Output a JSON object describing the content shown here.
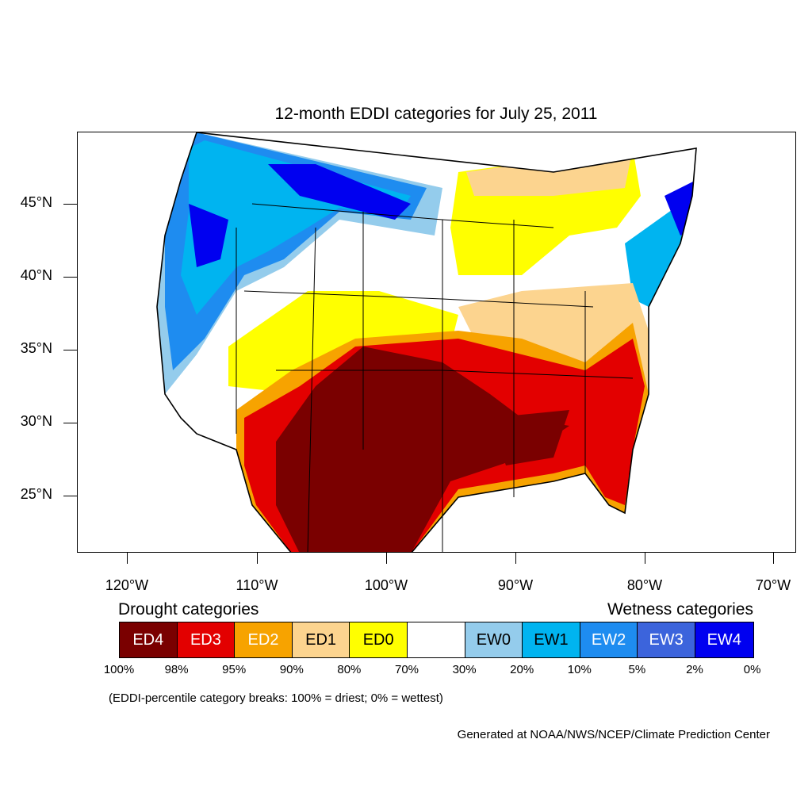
{
  "title": "12-month EDDI categories for July 25, 2011",
  "latitude_labels": [
    "45°N",
    "40°N",
    "35°N",
    "30°N",
    "25°N"
  ],
  "longitude_labels": [
    "120°W",
    "110°W",
    "100°W",
    "90°W",
    "80°W",
    "70°W"
  ],
  "legend": {
    "drought_heading": "Drought categories",
    "wetness_heading": "Wetness categories",
    "categories": [
      {
        "label": "ED4",
        "color": "#7a0000",
        "text_color": "#ffffff"
      },
      {
        "label": "ED3",
        "color": "#e30000",
        "text_color": "#ffffff"
      },
      {
        "label": "ED2",
        "color": "#f7a300",
        "text_color": "#ffffff"
      },
      {
        "label": "ED1",
        "color": "#fcd48f",
        "text_color": "#000000"
      },
      {
        "label": "ED0",
        "color": "#ffff00",
        "text_color": "#000000"
      },
      {
        "label": "",
        "color": "#ffffff",
        "text_color": "#000000"
      },
      {
        "label": "EW0",
        "color": "#94ccec",
        "text_color": "#000000"
      },
      {
        "label": "EW1",
        "color": "#00b4f0",
        "text_color": "#000000"
      },
      {
        "label": "EW2",
        "color": "#1e8cf0",
        "text_color": "#ffffff"
      },
      {
        "label": "EW3",
        "color": "#3c64dc",
        "text_color": "#ffffff"
      },
      {
        "label": "EW4",
        "color": "#0000f0",
        "text_color": "#ffffff"
      }
    ],
    "percent_ticks": [
      "100%",
      "98%",
      "95%",
      "90%",
      "80%",
      "70%",
      "30%",
      "20%",
      "10%",
      "5%",
      "2%",
      "0%"
    ]
  },
  "note": "(EDDI-percentile category breaks: 100% = driest; 0% = wettest)",
  "credit": "Generated at NOAA/NWS/NCEP/Climate Prediction Center"
}
